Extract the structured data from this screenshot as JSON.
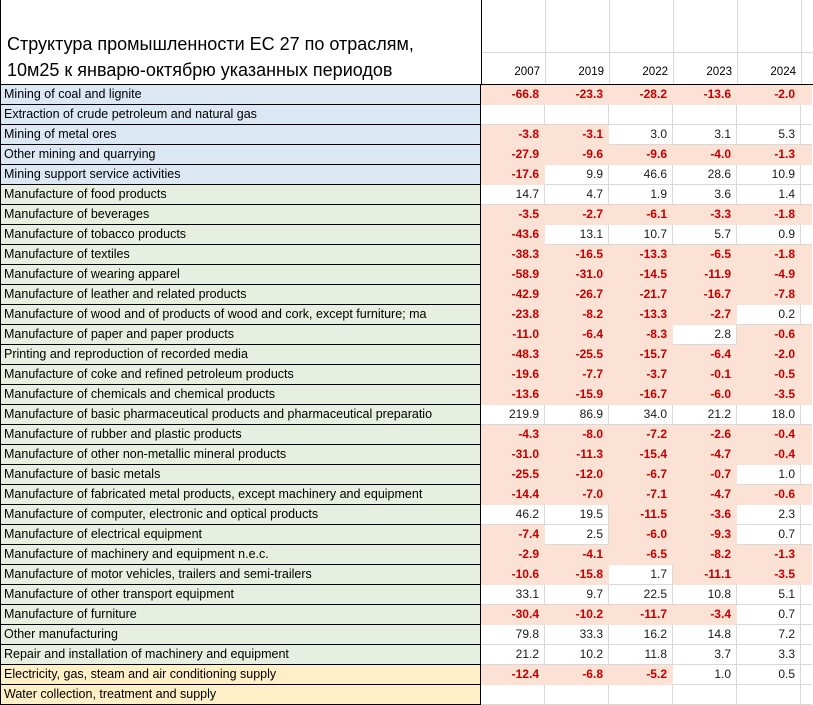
{
  "header": {
    "title_line1": "Структура промышленности ЕС 27 по отраслям,",
    "title_line2": "10м25 к январю-октябрю указанных периодов",
    "years": [
      "2007",
      "2019",
      "2022",
      "2023",
      "2024"
    ]
  },
  "colors": {
    "blue": "#dbe7f3",
    "green": "#e7efe0",
    "yellow": "#ffefc6",
    "pink": "#fbe2d5",
    "negative_text": "#c00000",
    "positive_text": "#1a1a1a",
    "grid": "#d9d9d9",
    "border": "#000000"
  },
  "rows": [
    {
      "label": "Mining of coal and lignite",
      "group": "blue",
      "values": [
        "-66.8",
        "-23.3",
        "-28.2",
        "-13.6",
        "-2.0"
      ]
    },
    {
      "label": "Extraction of crude petroleum and natural gas",
      "group": "blue",
      "values": [
        "",
        "",
        "",
        "",
        ""
      ]
    },
    {
      "label": "Mining of metal ores",
      "group": "blue",
      "values": [
        "-3.8",
        "-3.1",
        "3.0",
        "3.1",
        "5.3"
      ]
    },
    {
      "label": "Other mining and quarrying",
      "group": "blue",
      "values": [
        "-27.9",
        "-9.6",
        "-9.6",
        "-4.0",
        "-1.3"
      ]
    },
    {
      "label": "Mining support service activities",
      "group": "blue",
      "values": [
        "-17.6",
        "9.9",
        "46.6",
        "28.6",
        "10.9"
      ]
    },
    {
      "label": "Manufacture of food products",
      "group": "green",
      "values": [
        "14.7",
        "4.7",
        "1.9",
        "3.6",
        "1.4"
      ]
    },
    {
      "label": "Manufacture of beverages",
      "group": "green",
      "values": [
        "-3.5",
        "-2.7",
        "-6.1",
        "-3.3",
        "-1.8"
      ]
    },
    {
      "label": "Manufacture of tobacco products",
      "group": "green",
      "values": [
        "-43.6",
        "13.1",
        "10.7",
        "5.7",
        "0.9"
      ]
    },
    {
      "label": "Manufacture of textiles",
      "group": "green",
      "values": [
        "-38.3",
        "-16.5",
        "-13.3",
        "-6.5",
        "-1.8"
      ]
    },
    {
      "label": "Manufacture of wearing apparel",
      "group": "green",
      "values": [
        "-58.9",
        "-31.0",
        "-14.5",
        "-11.9",
        "-4.9"
      ]
    },
    {
      "label": "Manufacture of leather and related products",
      "group": "green",
      "values": [
        "-42.9",
        "-26.7",
        "-21.7",
        "-16.7",
        "-7.8"
      ]
    },
    {
      "label": "Manufacture of wood and of products of wood and cork, except furniture; ma",
      "group": "green",
      "values": [
        "-23.8",
        "-8.2",
        "-13.3",
        "-2.7",
        "0.2"
      ]
    },
    {
      "label": "Manufacture of paper and paper products",
      "group": "green",
      "values": [
        "-11.0",
        "-6.4",
        "-8.3",
        "2.8",
        "-0.6"
      ]
    },
    {
      "label": "Printing and reproduction of recorded media",
      "group": "green",
      "values": [
        "-48.3",
        "-25.5",
        "-15.7",
        "-6.4",
        "-2.0"
      ]
    },
    {
      "label": "Manufacture of coke and refined petroleum products",
      "group": "green",
      "values": [
        "-19.6",
        "-7.7",
        "-3.7",
        "-0.1",
        "-0.5"
      ]
    },
    {
      "label": "Manufacture of chemicals and chemical products",
      "group": "green",
      "values": [
        "-13.6",
        "-15.9",
        "-16.7",
        "-6.0",
        "-3.5"
      ]
    },
    {
      "label": "Manufacture of basic pharmaceutical products and pharmaceutical preparatio",
      "group": "green",
      "values": [
        "219.9",
        "86.9",
        "34.0",
        "21.2",
        "18.0"
      ]
    },
    {
      "label": "Manufacture of rubber and plastic products",
      "group": "green",
      "values": [
        "-4.3",
        "-8.0",
        "-7.2",
        "-2.6",
        "-0.4"
      ]
    },
    {
      "label": "Manufacture of other non-metallic mineral products",
      "group": "green",
      "values": [
        "-31.0",
        "-11.3",
        "-15.4",
        "-4.7",
        "-0.4"
      ]
    },
    {
      "label": "Manufacture of basic metals",
      "group": "green",
      "values": [
        "-25.5",
        "-12.0",
        "-6.7",
        "-0.7",
        "1.0"
      ]
    },
    {
      "label": "Manufacture of fabricated metal products, except machinery and equipment",
      "group": "green",
      "values": [
        "-14.4",
        "-7.0",
        "-7.1",
        "-4.7",
        "-0.6"
      ]
    },
    {
      "label": "Manufacture of computer, electronic and optical products",
      "group": "green",
      "values": [
        "46.2",
        "19.5",
        "-11.5",
        "-3.6",
        "2.3"
      ]
    },
    {
      "label": "Manufacture of electrical equipment",
      "group": "green",
      "values": [
        "-7.4",
        "2.5",
        "-6.0",
        "-9.3",
        "0.7"
      ]
    },
    {
      "label": "Manufacture of machinery and equipment n.e.c.",
      "group": "green",
      "values": [
        "-2.9",
        "-4.1",
        "-6.5",
        "-8.2",
        "-1.3"
      ]
    },
    {
      "label": "Manufacture of motor vehicles, trailers and semi-trailers",
      "group": "green",
      "values": [
        "-10.6",
        "-15.8",
        "1.7",
        "-11.1",
        "-3.5"
      ]
    },
    {
      "label": "Manufacture of other transport equipment",
      "group": "green",
      "values": [
        "33.1",
        "9.7",
        "22.5",
        "10.8",
        "5.1"
      ]
    },
    {
      "label": "Manufacture of furniture",
      "group": "green",
      "values": [
        "-30.4",
        "-10.2",
        "-11.7",
        "-3.4",
        "0.7"
      ]
    },
    {
      "label": "Other manufacturing",
      "group": "green",
      "values": [
        "79.8",
        "33.3",
        "16.2",
        "14.8",
        "7.2"
      ]
    },
    {
      "label": "Repair and installation of machinery and equipment",
      "group": "green",
      "values": [
        "21.2",
        "10.2",
        "11.8",
        "3.7",
        "3.3"
      ]
    },
    {
      "label": "Electricity, gas, steam and air conditioning supply",
      "group": "yellow",
      "values": [
        "-12.4",
        "-6.8",
        "-5.2",
        "1.0",
        "0.5"
      ]
    },
    {
      "label": "Water collection, treatment and supply",
      "group": "yellow",
      "values": [
        "",
        "",
        "",
        "",
        ""
      ]
    }
  ]
}
